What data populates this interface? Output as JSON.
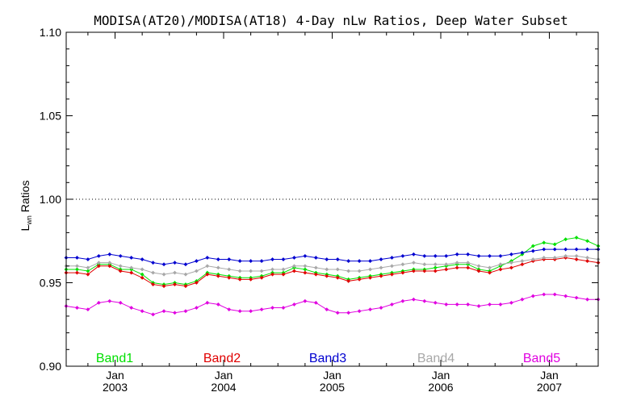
{
  "chart_data": {
    "type": "line",
    "title": "MODISA(AT20)/MODISA(AT18) 4-Day nLw Ratios, Deep Water Subset",
    "ylabel_main": "L",
    "ylabel_sub": "wn",
    "ylabel_rest": " Ratios",
    "xlabel": "",
    "ylim": [
      0.9,
      1.1
    ],
    "xlim": [
      2002.55,
      2007.45
    ],
    "yticks": [
      {
        "value": 0.9,
        "label": "0.90"
      },
      {
        "value": 0.95,
        "label": "0.95"
      },
      {
        "value": 1.0,
        "label": "1.00"
      },
      {
        "value": 1.05,
        "label": "1.05"
      },
      {
        "value": 1.1,
        "label": "1.10"
      }
    ],
    "xticks": [
      {
        "value": 2003.0,
        "month": "Jan",
        "year": "2003"
      },
      {
        "value": 2004.0,
        "month": "Jan",
        "year": "2004"
      },
      {
        "value": 2005.0,
        "month": "Jan",
        "year": "2005"
      },
      {
        "value": 2006.0,
        "month": "Jan",
        "year": "2006"
      },
      {
        "value": 2007.0,
        "month": "Jan",
        "year": "2007"
      }
    ],
    "reference_line": {
      "y": 1.0,
      "style": "dotted"
    },
    "legend_placement": "bottom",
    "x": [
      2002.55,
      2002.65,
      2002.75,
      2002.85,
      2002.95,
      2003.05,
      2003.15,
      2003.25,
      2003.35,
      2003.45,
      2003.55,
      2003.65,
      2003.75,
      2003.85,
      2003.95,
      2004.05,
      2004.15,
      2004.25,
      2004.35,
      2004.45,
      2004.55,
      2004.65,
      2004.75,
      2004.85,
      2004.95,
      2005.05,
      2005.15,
      2005.25,
      2005.35,
      2005.45,
      2005.55,
      2005.65,
      2005.75,
      2005.85,
      2005.95,
      2006.05,
      2006.15,
      2006.25,
      2006.35,
      2006.45,
      2006.55,
      2006.65,
      2006.75,
      2006.85,
      2006.95,
      2007.05,
      2007.15,
      2007.25,
      2007.35,
      2007.45
    ],
    "series": [
      {
        "name": "Band1",
        "color": "#00e000",
        "values": [
          0.958,
          0.958,
          0.957,
          0.961,
          0.961,
          0.958,
          0.958,
          0.955,
          0.95,
          0.949,
          0.95,
          0.949,
          0.951,
          0.956,
          0.955,
          0.954,
          0.953,
          0.953,
          0.954,
          0.956,
          0.956,
          0.959,
          0.958,
          0.956,
          0.955,
          0.954,
          0.952,
          0.953,
          0.954,
          0.955,
          0.956,
          0.957,
          0.958,
          0.958,
          0.959,
          0.96,
          0.961,
          0.961,
          0.958,
          0.957,
          0.96,
          0.963,
          0.967,
          0.972,
          0.974,
          0.973,
          0.976,
          0.977,
          0.975,
          0.972
        ]
      },
      {
        "name": "Band2",
        "color": "#e00000",
        "values": [
          0.956,
          0.956,
          0.955,
          0.96,
          0.96,
          0.957,
          0.956,
          0.953,
          0.949,
          0.948,
          0.949,
          0.948,
          0.95,
          0.955,
          0.954,
          0.953,
          0.952,
          0.952,
          0.953,
          0.955,
          0.955,
          0.957,
          0.956,
          0.955,
          0.954,
          0.953,
          0.951,
          0.952,
          0.953,
          0.954,
          0.955,
          0.956,
          0.957,
          0.957,
          0.957,
          0.958,
          0.959,
          0.959,
          0.957,
          0.956,
          0.958,
          0.959,
          0.961,
          0.963,
          0.964,
          0.964,
          0.965,
          0.964,
          0.963,
          0.962
        ]
      },
      {
        "name": "Band3",
        "color": "#0000d0",
        "values": [
          0.965,
          0.965,
          0.964,
          0.966,
          0.967,
          0.966,
          0.965,
          0.964,
          0.962,
          0.961,
          0.962,
          0.961,
          0.963,
          0.965,
          0.964,
          0.964,
          0.963,
          0.963,
          0.963,
          0.964,
          0.964,
          0.965,
          0.966,
          0.965,
          0.964,
          0.964,
          0.963,
          0.963,
          0.963,
          0.964,
          0.965,
          0.966,
          0.967,
          0.966,
          0.966,
          0.966,
          0.967,
          0.967,
          0.966,
          0.966,
          0.966,
          0.967,
          0.968,
          0.969,
          0.97,
          0.97,
          0.97,
          0.97,
          0.97,
          0.97
        ]
      },
      {
        "name": "Band4",
        "color": "#a8a8a8",
        "values": [
          0.96,
          0.96,
          0.959,
          0.962,
          0.962,
          0.96,
          0.959,
          0.958,
          0.956,
          0.955,
          0.956,
          0.955,
          0.957,
          0.96,
          0.959,
          0.958,
          0.957,
          0.957,
          0.957,
          0.958,
          0.958,
          0.96,
          0.96,
          0.959,
          0.958,
          0.958,
          0.957,
          0.957,
          0.958,
          0.959,
          0.96,
          0.961,
          0.962,
          0.961,
          0.961,
          0.961,
          0.962,
          0.962,
          0.96,
          0.959,
          0.961,
          0.962,
          0.963,
          0.964,
          0.965,
          0.965,
          0.966,
          0.966,
          0.965,
          0.964
        ]
      },
      {
        "name": "Band5",
        "color": "#e000e0",
        "values": [
          0.936,
          0.935,
          0.934,
          0.938,
          0.939,
          0.938,
          0.935,
          0.933,
          0.931,
          0.933,
          0.932,
          0.933,
          0.935,
          0.938,
          0.937,
          0.934,
          0.933,
          0.933,
          0.934,
          0.935,
          0.935,
          0.937,
          0.939,
          0.938,
          0.934,
          0.932,
          0.932,
          0.933,
          0.934,
          0.935,
          0.937,
          0.939,
          0.94,
          0.939,
          0.938,
          0.937,
          0.937,
          0.937,
          0.936,
          0.937,
          0.937,
          0.938,
          0.94,
          0.942,
          0.943,
          0.943,
          0.942,
          0.941,
          0.94,
          0.94
        ]
      }
    ]
  }
}
